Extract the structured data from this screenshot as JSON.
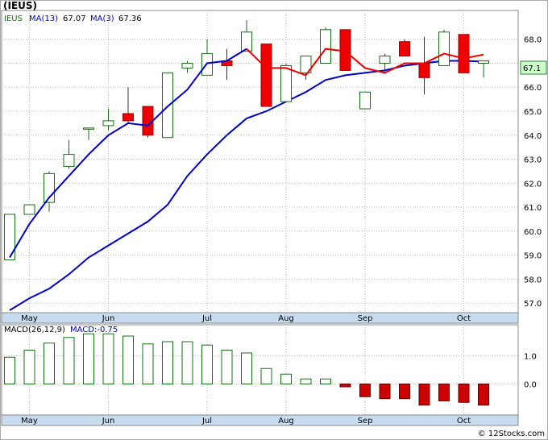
{
  "title": "(IEUS)",
  "watermark": "© 12Stocks.com",
  "colors": {
    "up_candle": "#1a6e1a",
    "down_candle": "#ee0000",
    "ma13": "#0000cc",
    "ma3": "#ee0000",
    "macd_pos": "#1a6e1a",
    "macd_neg": "#cc0000",
    "label_bg": "#ccffcc",
    "axis_band": "#c8dcf0",
    "grid": "#bbbbbb"
  },
  "price_panel": {
    "legend": {
      "symbol": "IEUS",
      "ma13": "MA(13)",
      "ma13_value": "67.07",
      "ma3": "MA(3)",
      "ma3_value": "67.36"
    },
    "last_price_label": "67.1",
    "y_ticks": [
      "57.0",
      "58.0",
      "59.0",
      "60.0",
      "61.0",
      "62.0",
      "63.0",
      "64.0",
      "65.0",
      "66.0",
      "67.0",
      "68.0"
    ]
  },
  "macd_panel": {
    "legend": {
      "label": "MACD(26,12,9)",
      "value_label": "MACD:-0.75"
    },
    "y_ticks": [
      "1.0",
      "0.0"
    ]
  },
  "months": [
    "May",
    "Jun",
    "Jul",
    "Aug",
    "Sep",
    "Oct"
  ],
  "chart_data": [
    {
      "type": "candlestick",
      "title": "(IEUS)",
      "interval": "weekly",
      "ylim": [
        56.6,
        69.2
      ],
      "grid": true,
      "series": [
        {
          "name": "IEUS",
          "candles": [
            {
              "open": 58.8,
              "high": 60.7,
              "low": 58.8,
              "close": 60.7
            },
            {
              "open": 60.7,
              "high": 61.1,
              "low": 60.7,
              "close": 61.1
            },
            {
              "open": 61.2,
              "high": 62.5,
              "low": 60.8,
              "close": 62.4
            },
            {
              "open": 62.7,
              "high": 63.8,
              "low": 62.6,
              "close": 63.2
            },
            {
              "open": 64.3,
              "high": 64.3,
              "low": 63.8,
              "close": 64.3
            },
            {
              "open": 64.4,
              "high": 65.1,
              "low": 64.2,
              "close": 64.6
            },
            {
              "open": 64.9,
              "high": 66.0,
              "low": 64.5,
              "close": 64.6
            },
            {
              "open": 65.2,
              "high": 65.2,
              "low": 63.9,
              "close": 64.0
            },
            {
              "open": 63.9,
              "high": 66.6,
              "low": 63.9,
              "close": 66.6
            },
            {
              "open": 66.8,
              "high": 67.1,
              "low": 66.6,
              "close": 67.0
            },
            {
              "open": 66.5,
              "high": 68.0,
              "low": 66.5,
              "close": 67.4
            },
            {
              "open": 67.1,
              "high": 67.6,
              "low": 66.3,
              "close": 66.9
            },
            {
              "open": 67.5,
              "high": 68.8,
              "low": 67.5,
              "close": 68.3
            },
            {
              "open": 67.8,
              "high": 67.8,
              "low": 65.2,
              "close": 65.2
            },
            {
              "open": 65.4,
              "high": 67.0,
              "low": 65.4,
              "close": 66.9
            },
            {
              "open": 66.6,
              "high": 67.3,
              "low": 66.3,
              "close": 67.3
            },
            {
              "open": 67.0,
              "high": 68.5,
              "low": 67.0,
              "close": 68.4
            },
            {
              "open": 68.4,
              "high": 68.4,
              "low": 66.7,
              "close": 66.7
            },
            {
              "open": 65.1,
              "high": 65.8,
              "low": 65.1,
              "close": 65.8
            },
            {
              "open": 67.0,
              "high": 67.4,
              "low": 66.6,
              "close": 67.3
            },
            {
              "open": 67.9,
              "high": 68.0,
              "low": 67.3,
              "close": 67.3
            },
            {
              "open": 67.0,
              "high": 68.1,
              "low": 65.7,
              "close": 66.4
            },
            {
              "open": 66.9,
              "high": 68.4,
              "low": 66.9,
              "close": 68.3
            },
            {
              "open": 68.2,
              "high": 68.2,
              "low": 66.6,
              "close": 66.6
            },
            {
              "open": 67.0,
              "high": 67.1,
              "low": 66.4,
              "close": 67.1
            }
          ]
        },
        {
          "name": "MA(13)",
          "values": [
            56.7,
            57.2,
            57.6,
            58.2,
            58.9,
            59.4,
            59.9,
            60.4,
            61.1,
            62.3,
            63.2,
            64.0,
            64.7,
            65.0,
            65.4,
            65.8,
            66.3,
            66.5,
            66.6,
            66.7,
            66.9,
            67.0,
            67.1,
            67.1,
            67.07
          ]
        },
        {
          "name": "MA(3)",
          "values": [
            58.9,
            60.3,
            61.4,
            62.3,
            63.2,
            64.0,
            64.5,
            64.4,
            65.2,
            65.9,
            67.0,
            67.1,
            67.6,
            66.8,
            66.8,
            66.5,
            67.6,
            67.5,
            66.8,
            66.6,
            67.0,
            67.0,
            67.4,
            67.2,
            67.36
          ]
        }
      ],
      "x_tick_labels": [
        "May",
        "Jun",
        "Jul",
        "Aug",
        "Sep",
        "Oct"
      ]
    },
    {
      "type": "bar",
      "title": "MACD(26,12,9)",
      "ylim": [
        -1.1,
        2.1
      ],
      "series": [
        {
          "name": "MACD",
          "values": [
            0.95,
            1.2,
            1.45,
            1.65,
            1.78,
            1.78,
            1.7,
            1.42,
            1.5,
            1.5,
            1.38,
            1.2,
            1.1,
            0.55,
            0.35,
            0.18,
            0.18,
            -0.1,
            -0.45,
            -0.52,
            -0.52,
            -0.75,
            -0.6,
            -0.65,
            -0.75
          ]
        }
      ]
    }
  ]
}
